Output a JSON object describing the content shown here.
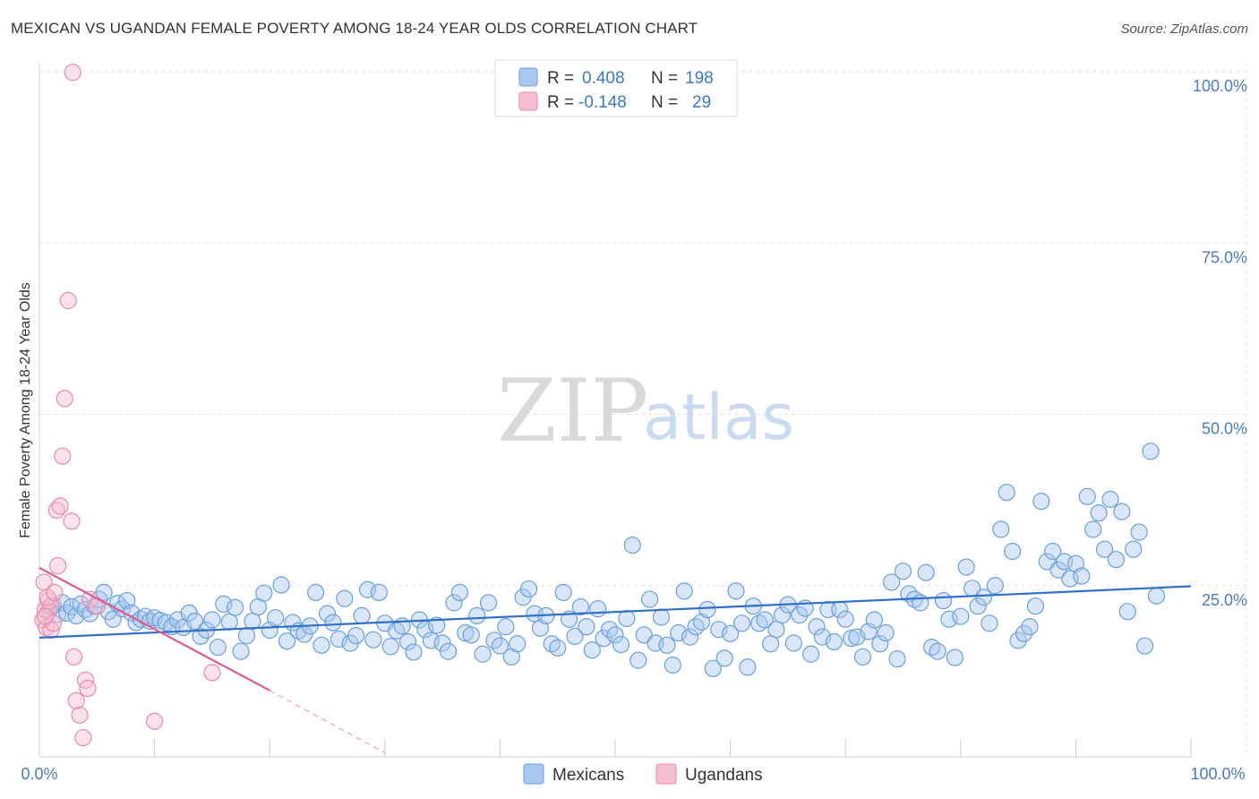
{
  "title": "MEXICAN VS UGANDAN FEMALE POVERTY AMONG 18-24 YEAR OLDS CORRELATION CHART",
  "source": "Source: ZipAtlas.com",
  "watermark": {
    "zip": "ZIP",
    "atlas": "atlas"
  },
  "colors": {
    "blue_fill": "#a9c8f0",
    "blue_stroke": "#6a9fdc",
    "blue_line": "#3070c8",
    "pink_fill": "#f6bfd1",
    "pink_stroke": "#e889aa",
    "pink_line": "#e05a8c",
    "grid": "#e3e3e3",
    "tick_text": "#4a7cc4"
  },
  "legend": {
    "rows": [
      {
        "r_label": "R =",
        "r_value": "0.408",
        "n_label": "N =",
        "n_value": "198"
      },
      {
        "r_label": "R =",
        "r_value": "-0.148",
        "n_label": "N =",
        "n_value": "29"
      }
    ]
  },
  "chart_data": {
    "type": "scatter",
    "title": "MEXICAN VS UGANDAN FEMALE POVERTY AMONG 18-24 YEAR OLDS CORRELATION CHART",
    "xlabel": "",
    "ylabel": "Female Poverty Among 18-24 Year Olds",
    "xlim": [
      0,
      100
    ],
    "ylim": [
      0,
      100
    ],
    "x_tick_labels": [
      "0.0%",
      "100.0%"
    ],
    "y_ticks": [
      25,
      50,
      75,
      100
    ],
    "y_tick_labels": [
      "25.0%",
      "50.0%",
      "75.0%",
      "100.0%"
    ],
    "grid": true,
    "legend_position": "bottom",
    "series": [
      {
        "name": "Mexicans",
        "color": "#a9c8f0",
        "trend": {
          "x": [
            0,
            100
          ],
          "y": [
            17.4,
            24.9
          ]
        },
        "points": [
          [
            0.8,
            21.3
          ],
          [
            1.2,
            22.1
          ],
          [
            1.6,
            20.8
          ],
          [
            2.0,
            22.5
          ],
          [
            2.4,
            21.0
          ],
          [
            2.8,
            21.9
          ],
          [
            3.2,
            20.6
          ],
          [
            3.6,
            22.3
          ],
          [
            4.0,
            21.5
          ],
          [
            4.4,
            20.9
          ],
          [
            4.8,
            22.0
          ],
          [
            5.2,
            23.0
          ],
          [
            5.6,
            24.0
          ],
          [
            6.0,
            21.2
          ],
          [
            6.4,
            20.1
          ],
          [
            6.8,
            22.4
          ],
          [
            7.2,
            21.6
          ],
          [
            7.6,
            22.8
          ],
          [
            8.0,
            21.0
          ],
          [
            8.4,
            19.6
          ],
          [
            8.8,
            20.1
          ],
          [
            9.2,
            20.5
          ],
          [
            9.6,
            19.8
          ],
          [
            10.0,
            20.3
          ],
          [
            10.5,
            19.9
          ],
          [
            11.0,
            19.6
          ],
          [
            11.5,
            19.0
          ],
          [
            12.0,
            20.0
          ],
          [
            12.5,
            18.9
          ],
          [
            13.0,
            21.0
          ],
          [
            13.5,
            19.8
          ],
          [
            14.0,
            17.6
          ],
          [
            14.5,
            18.5
          ],
          [
            15.0,
            20.0
          ],
          [
            15.5,
            16.0
          ],
          [
            16.0,
            22.3
          ],
          [
            16.5,
            19.7
          ],
          [
            17.0,
            21.8
          ],
          [
            17.5,
            15.4
          ],
          [
            18.0,
            17.7
          ],
          [
            18.5,
            19.8
          ],
          [
            19.0,
            21.9
          ],
          [
            19.5,
            23.9
          ],
          [
            20.0,
            18.5
          ],
          [
            20.5,
            20.3
          ],
          [
            21.0,
            25.1
          ],
          [
            21.5,
            16.9
          ],
          [
            22.0,
            19.6
          ],
          [
            22.5,
            18.4
          ],
          [
            23.0,
            17.9
          ],
          [
            23.5,
            19.1
          ],
          [
            24.0,
            24.0
          ],
          [
            24.5,
            16.3
          ],
          [
            25.0,
            20.9
          ],
          [
            25.5,
            19.6
          ],
          [
            26.0,
            17.2
          ],
          [
            26.5,
            23.1
          ],
          [
            27.0,
            16.6
          ],
          [
            27.5,
            17.7
          ],
          [
            28.0,
            20.6
          ],
          [
            28.5,
            24.4
          ],
          [
            29.0,
            17.1
          ],
          [
            29.5,
            24.0
          ],
          [
            30.0,
            19.5
          ],
          [
            30.5,
            16.1
          ],
          [
            31.0,
            18.4
          ],
          [
            31.5,
            19.1
          ],
          [
            32.0,
            16.8
          ],
          [
            32.5,
            15.3
          ],
          [
            33.0,
            20.0
          ],
          [
            33.5,
            18.6
          ],
          [
            34.0,
            17.0
          ],
          [
            34.5,
            19.2
          ],
          [
            35.0,
            16.6
          ],
          [
            35.5,
            15.4
          ],
          [
            36.0,
            22.5
          ],
          [
            36.5,
            24.0
          ],
          [
            37.0,
            18.1
          ],
          [
            37.5,
            17.8
          ],
          [
            38.0,
            20.6
          ],
          [
            38.5,
            15.0
          ],
          [
            39.0,
            22.5
          ],
          [
            39.5,
            17.0
          ],
          [
            40.0,
            16.2
          ],
          [
            40.5,
            19.0
          ],
          [
            41.0,
            14.6
          ],
          [
            41.5,
            16.5
          ],
          [
            42.0,
            23.3
          ],
          [
            42.5,
            24.5
          ],
          [
            43.0,
            20.9
          ],
          [
            43.5,
            18.8
          ],
          [
            44.0,
            20.6
          ],
          [
            44.5,
            16.5
          ],
          [
            45.0,
            15.9
          ],
          [
            45.5,
            24.0
          ],
          [
            46.0,
            20.1
          ],
          [
            46.5,
            17.6
          ],
          [
            47.0,
            21.9
          ],
          [
            47.5,
            19.0
          ],
          [
            48.0,
            15.6
          ],
          [
            48.5,
            21.6
          ],
          [
            49.0,
            17.3
          ],
          [
            49.5,
            18.6
          ],
          [
            50.0,
            17.8
          ],
          [
            50.5,
            16.4
          ],
          [
            51.0,
            20.2
          ],
          [
            51.5,
            30.9
          ],
          [
            52.0,
            14.1
          ],
          [
            52.5,
            17.8
          ],
          [
            53.0,
            23.0
          ],
          [
            53.5,
            16.6
          ],
          [
            54.0,
            20.4
          ],
          [
            54.5,
            16.3
          ],
          [
            55.0,
            13.4
          ],
          [
            55.5,
            18.1
          ],
          [
            56.0,
            24.2
          ],
          [
            56.5,
            17.5
          ],
          [
            57.0,
            19.0
          ],
          [
            57.5,
            19.7
          ],
          [
            58.0,
            21.5
          ],
          [
            58.5,
            12.9
          ],
          [
            59.0,
            18.6
          ],
          [
            59.5,
            14.4
          ],
          [
            60.0,
            18.0
          ],
          [
            60.5,
            24.2
          ],
          [
            61.0,
            19.5
          ],
          [
            61.5,
            13.1
          ],
          [
            62.0,
            22.0
          ],
          [
            62.5,
            19.5
          ],
          [
            63.0,
            20.0
          ],
          [
            63.5,
            16.5
          ],
          [
            64.0,
            18.6
          ],
          [
            64.5,
            20.7
          ],
          [
            65.0,
            22.2
          ],
          [
            65.5,
            16.6
          ],
          [
            66.0,
            20.7
          ],
          [
            66.5,
            21.7
          ],
          [
            67.0,
            15.0
          ],
          [
            67.5,
            19.0
          ],
          [
            68.0,
            17.5
          ],
          [
            68.5,
            21.5
          ],
          [
            69.0,
            16.8
          ],
          [
            69.5,
            21.5
          ],
          [
            70.0,
            20.1
          ],
          [
            70.5,
            17.3
          ],
          [
            71.0,
            17.5
          ],
          [
            71.5,
            14.6
          ],
          [
            72.0,
            18.3
          ],
          [
            72.5,
            20.0
          ],
          [
            73.0,
            16.5
          ],
          [
            73.5,
            18.1
          ],
          [
            74.0,
            25.5
          ],
          [
            74.5,
            14.3
          ],
          [
            75.0,
            27.1
          ],
          [
            75.5,
            23.8
          ],
          [
            76.0,
            23.0
          ],
          [
            76.5,
            22.5
          ],
          [
            77.0,
            26.9
          ],
          [
            77.5,
            16.0
          ],
          [
            78.0,
            15.4
          ],
          [
            78.5,
            22.8
          ],
          [
            79.0,
            20.1
          ],
          [
            79.5,
            14.5
          ],
          [
            80.0,
            20.5
          ],
          [
            80.5,
            27.7
          ],
          [
            81.0,
            24.6
          ],
          [
            81.5,
            22.0
          ],
          [
            82.0,
            23.3
          ],
          [
            82.5,
            19.5
          ],
          [
            83.0,
            25.0
          ],
          [
            83.5,
            33.2
          ],
          [
            84.0,
            38.6
          ],
          [
            84.5,
            30.0
          ],
          [
            85.0,
            17.0
          ],
          [
            85.5,
            18.0
          ],
          [
            86.0,
            19.0
          ],
          [
            86.5,
            22.0
          ],
          [
            87.0,
            37.3
          ],
          [
            87.5,
            28.5
          ],
          [
            88.0,
            30.0
          ],
          [
            88.5,
            27.3
          ],
          [
            89.0,
            28.5
          ],
          [
            89.5,
            26.0
          ],
          [
            90.0,
            28.2
          ],
          [
            90.5,
            26.4
          ],
          [
            91.0,
            38.0
          ],
          [
            91.5,
            33.2
          ],
          [
            92.0,
            35.6
          ],
          [
            92.5,
            30.3
          ],
          [
            93.0,
            37.6
          ],
          [
            93.5,
            28.8
          ],
          [
            94.0,
            35.8
          ],
          [
            94.5,
            21.2
          ],
          [
            95.0,
            30.3
          ],
          [
            95.5,
            32.8
          ],
          [
            96.0,
            16.2
          ],
          [
            96.5,
            44.6
          ],
          [
            97.0,
            23.5
          ]
        ]
      },
      {
        "name": "Ugandans",
        "color": "#f6bfd1",
        "trend": {
          "x": [
            0,
            20
          ],
          "y": [
            27.6,
            9.7
          ],
          "dashed_x": [
            20,
            30
          ],
          "dashed_y": [
            9.7,
            0.6
          ]
        },
        "points": [
          [
            0.3,
            20.0
          ],
          [
            0.5,
            21.5
          ],
          [
            0.6,
            18.9
          ],
          [
            0.8,
            22.8
          ],
          [
            1.0,
            18.5
          ],
          [
            1.2,
            19.5
          ],
          [
            0.4,
            25.5
          ],
          [
            1.5,
            36.0
          ],
          [
            1.8,
            36.6
          ],
          [
            1.6,
            27.9
          ],
          [
            2.0,
            43.9
          ],
          [
            2.2,
            52.3
          ],
          [
            2.5,
            66.6
          ],
          [
            2.8,
            34.4
          ],
          [
            3.0,
            14.6
          ],
          [
            3.2,
            8.2
          ],
          [
            3.5,
            6.1
          ],
          [
            3.8,
            2.8
          ],
          [
            4.0,
            11.2
          ],
          [
            4.2,
            10.0
          ],
          [
            2.9,
            99.9
          ],
          [
            1.0,
            22.0
          ],
          [
            0.7,
            23.3
          ],
          [
            4.4,
            23.0
          ],
          [
            5.0,
            22.0
          ],
          [
            15.0,
            12.3
          ],
          [
            10.0,
            5.2
          ],
          [
            1.3,
            24.0
          ],
          [
            0.5,
            20.5
          ]
        ]
      }
    ]
  },
  "bottom_legend": {
    "items": [
      "Mexicans",
      "Ugandans"
    ]
  }
}
